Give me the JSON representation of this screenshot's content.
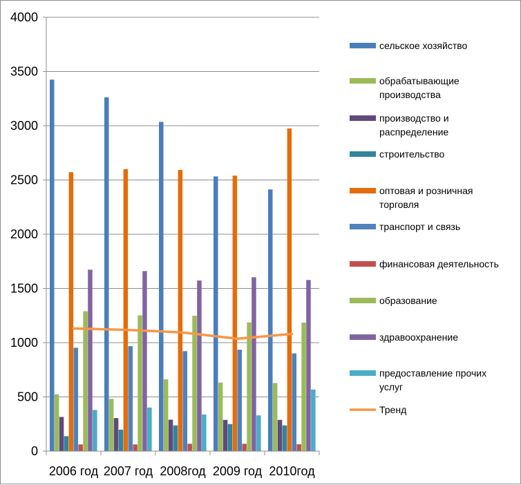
{
  "chart_data": {
    "type": "bar",
    "title": "",
    "xlabel": "",
    "ylabel": "",
    "categories": [
      "2006 год",
      "2007 год",
      "2008год",
      "2009 год",
      "2010год"
    ],
    "ylim": [
      0,
      4000
    ],
    "yticks": [
      "0",
      "500",
      "1000",
      "1500",
      "2000",
      "2500",
      "3000",
      "3500",
      "4000"
    ],
    "grid": true,
    "legend_position": "right",
    "series": [
      {
        "name": "сельское хозяйство",
        "legend_lines": [
          "сельское хозяйство"
        ],
        "color": "#4a7ebb",
        "values": [
          3425,
          3262,
          3036,
          2533,
          2413
        ]
      },
      {
        "name": "обрабатывающие производства",
        "legend_lines": [
          "обрабатывающие",
          "производства"
        ],
        "color": "#9bbb59",
        "values": [
          524,
          482,
          662,
          632,
          628
        ]
      },
      {
        "name": "производство и распределение",
        "legend_lines": [
          "производство и",
          "распределение"
        ],
        "color": "#604a7b",
        "values": [
          315,
          305,
          290,
          288,
          288
        ]
      },
      {
        "name": "строительство",
        "legend_lines": [
          "строительство"
        ],
        "color": "#31859c",
        "values": [
          138,
          198,
          237,
          250,
          237
        ]
      },
      {
        "name": "оптовая и розничная торговля",
        "legend_lines": [
          "оптовая и розничная",
          "торговля"
        ],
        "color": "#e46c0a",
        "values": [
          2572,
          2600,
          2593,
          2540,
          2975
        ]
      },
      {
        "name": "транспорт и связь",
        "legend_lines": [
          "транспорт и связь"
        ],
        "color": "#4f81bd",
        "values": [
          953,
          968,
          922,
          935,
          901
        ]
      },
      {
        "name": "финансовая деятельность",
        "legend_lines": [
          "финансовая деятельность"
        ],
        "color": "#c0504d",
        "values": [
          62,
          62,
          68,
          68,
          64
        ]
      },
      {
        "name": "образование",
        "legend_lines": [
          "образование"
        ],
        "color": "#9bbb59",
        "values": [
          1290,
          1252,
          1248,
          1187,
          1185
        ]
      },
      {
        "name": "здравоохранение",
        "legend_lines": [
          "здравоохранение"
        ],
        "color": "#8064a2",
        "values": [
          1673,
          1660,
          1573,
          1603,
          1578
        ]
      },
      {
        "name": "предоставление прочих услуг",
        "legend_lines": [
          "предоставление прочих",
          "услуг"
        ],
        "color": "#4bacc6",
        "values": [
          380,
          402,
          338,
          330,
          568
        ]
      }
    ],
    "trend": {
      "name": "Тренд",
      "legend_lines": [
        "Тренд"
      ],
      "color": "#f79646",
      "values": [
        1131,
        1118,
        1094,
        1036,
        1081
      ]
    }
  }
}
